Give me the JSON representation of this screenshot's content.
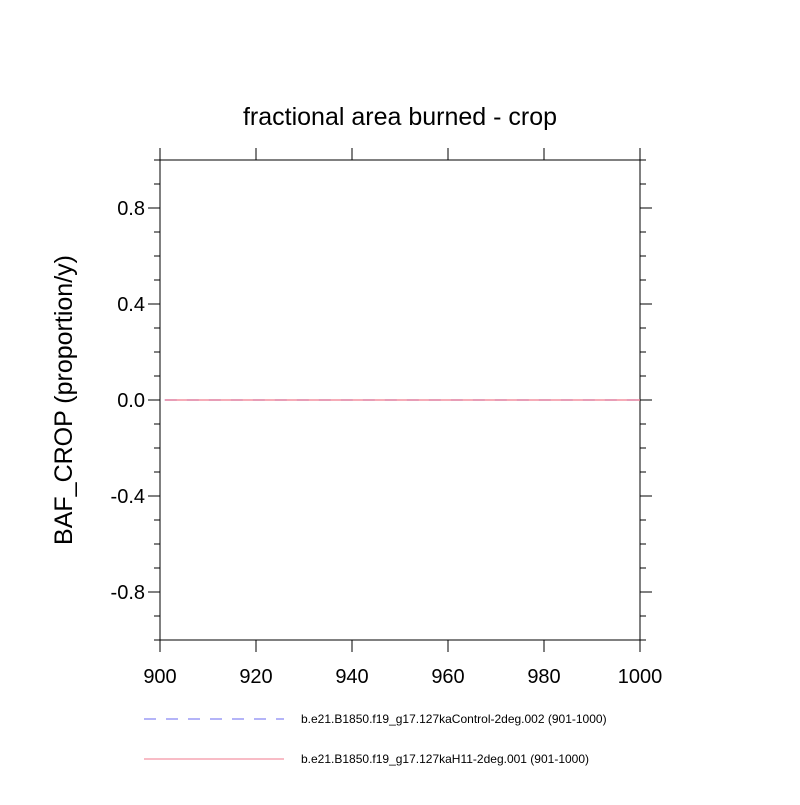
{
  "chart_data": {
    "type": "line",
    "title": "fractional area burned - crop",
    "xlabel": "",
    "ylabel": "BAF_CROP  (proportion/y)",
    "xlim": [
      900,
      1000
    ],
    "ylim": [
      -1.0,
      1.0
    ],
    "x_ticks": [
      900,
      920,
      940,
      960,
      980,
      1000
    ],
    "x_tick_labels": [
      "900",
      "920",
      "940",
      "960",
      "980",
      "1000"
    ],
    "y_ticks": [
      -0.8,
      -0.4,
      0.0,
      0.4,
      0.8
    ],
    "y_tick_labels": [
      "-0.8",
      "-0.4",
      "0.0",
      "0.4",
      "0.8"
    ],
    "grid": false,
    "legend_position": "bottom",
    "series": [
      {
        "name": "b.e21.B1850.f19_g17.127kaControl-2deg.002 (901-1000)",
        "color": "#6a6af0",
        "dash": "dashed",
        "x": [
          901,
          1000
        ],
        "y": [
          0.0,
          0.0
        ]
      },
      {
        "name": "b.e21.B1850.f19_g17.127kaH11-2deg.001 (901-1000)",
        "color": "#f07a8c",
        "dash": "solid",
        "x": [
          901,
          1000
        ],
        "y": [
          0.0,
          0.0
        ]
      }
    ]
  }
}
